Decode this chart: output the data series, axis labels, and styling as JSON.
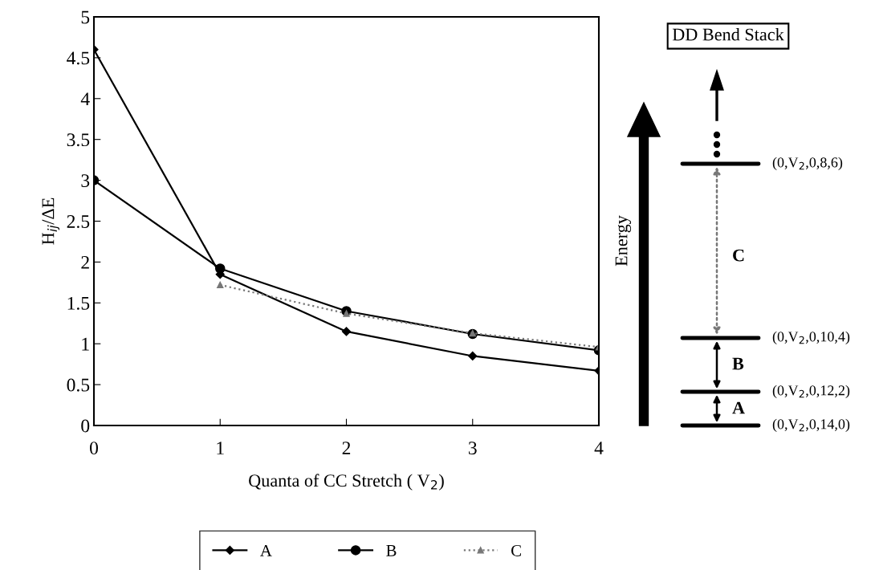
{
  "chart_data": {
    "type": "line",
    "xlabel": "Quanta of CC Stretch ( V$_{2}$)",
    "ylabel": "H$_{ij}$/ΔE",
    "x": [
      0,
      1,
      2,
      3,
      4
    ],
    "xlim": [
      0,
      4
    ],
    "xticks": [
      0,
      1,
      2,
      3,
      4
    ],
    "ylim": [
      0,
      5
    ],
    "yticks": [
      0,
      0.5,
      1,
      1.5,
      2,
      2.5,
      3,
      3.5,
      4,
      4.5,
      5
    ],
    "series": [
      {
        "name": "A",
        "color": "#000000",
        "marker": "diamond",
        "line_style": "solid",
        "values": [
          4.6,
          1.85,
          1.15,
          0.85,
          0.67
        ]
      },
      {
        "name": "B",
        "color": "#000000",
        "marker": "circle",
        "line_style": "solid",
        "values": [
          3.0,
          1.92,
          1.4,
          1.12,
          0.92
        ]
      },
      {
        "name": "C",
        "color": "#777777",
        "marker": "triangle",
        "line_style": "dotted",
        "values": [
          null,
          1.72,
          1.37,
          1.13,
          0.96
        ]
      }
    ],
    "legend": "bottom",
    "annotations": [
      "DD Bend Stack",
      "Energy",
      "C",
      "B",
      "A",
      "(0,V$_{2}$,0,8,6)",
      "(0,V$_{2}$,0,10,4)",
      "(0,V$_{2}$,0,12,2)",
      "(0,V$_{2}$,0,14,0)"
    ]
  }
}
